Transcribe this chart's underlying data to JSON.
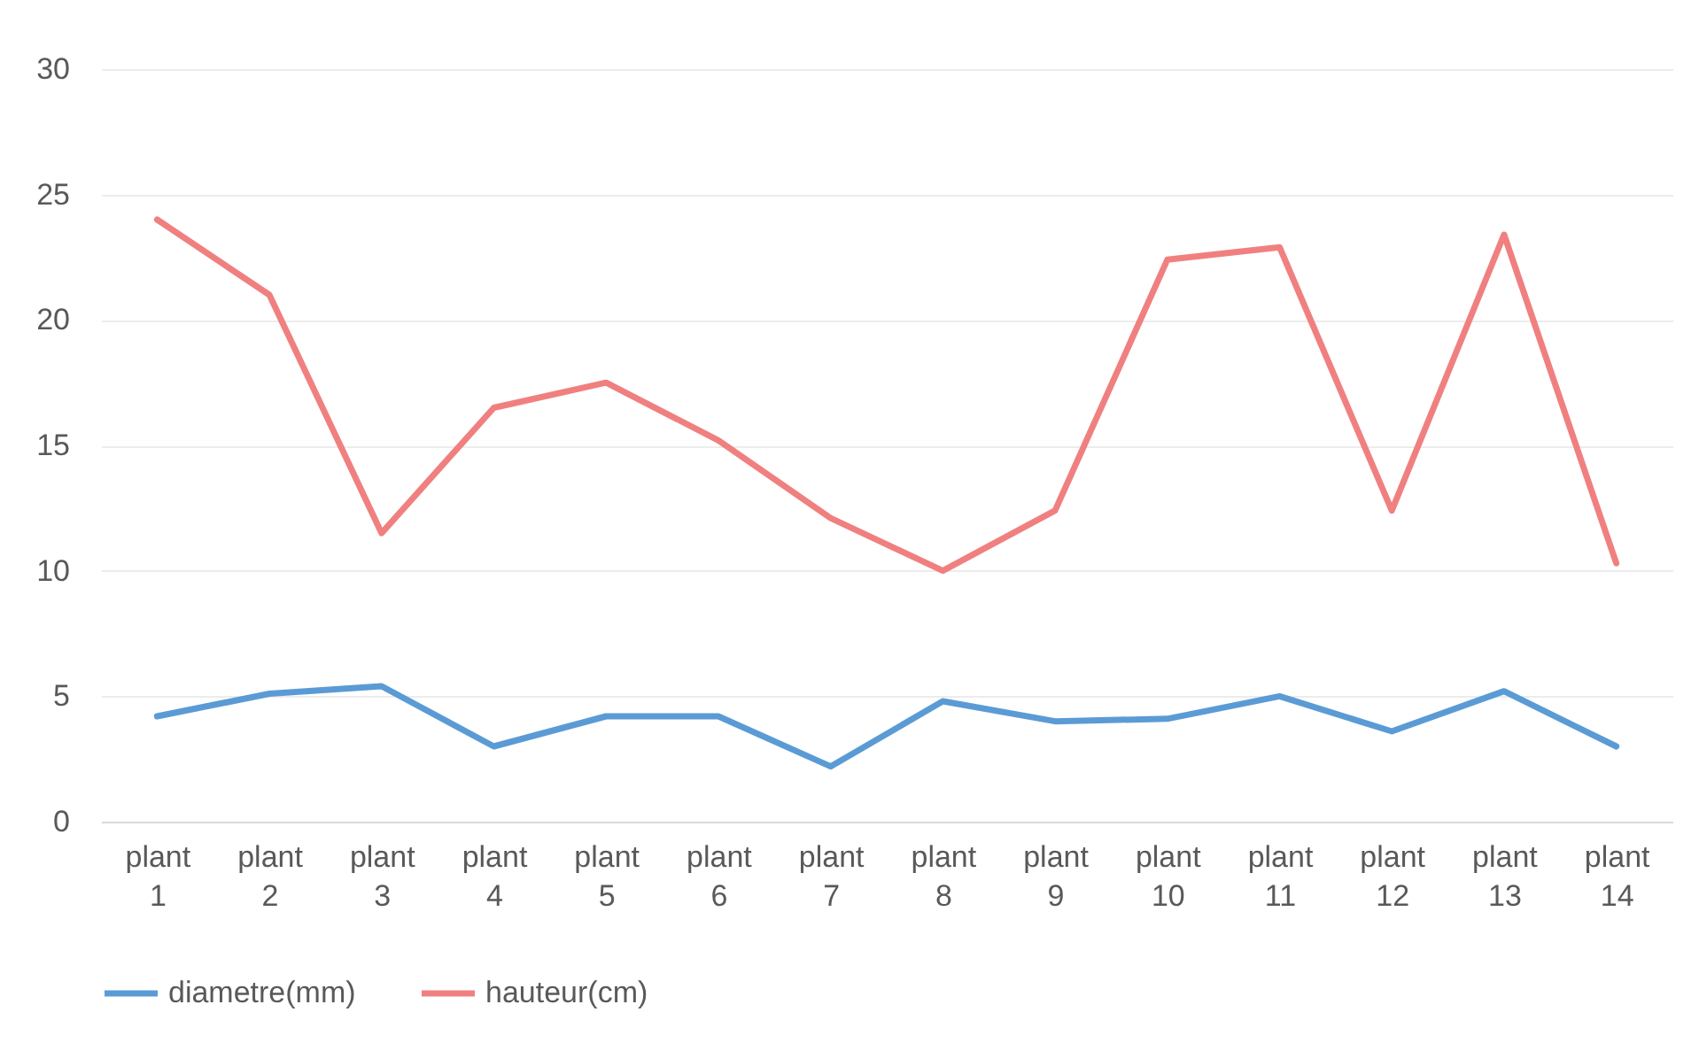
{
  "chart_data": {
    "type": "line",
    "categories": [
      "plant 1",
      "plant 2",
      "plant 3",
      "plant 4",
      "plant 5",
      "plant 6",
      "plant 7",
      "plant 8",
      "plant 9",
      "plant 10",
      "plant 11",
      "plant 12",
      "plant 13",
      "plant 14"
    ],
    "series": [
      {
        "name": "diametre(mm)",
        "color": "#5b9bd5",
        "values": [
          4.2,
          5.1,
          5.4,
          3.0,
          4.2,
          4.2,
          2.2,
          4.8,
          4.0,
          4.1,
          5.0,
          3.6,
          5.2,
          3.0
        ]
      },
      {
        "name": "hauteur(cm)",
        "color": "#f08080",
        "values": [
          24.0,
          21.0,
          11.5,
          16.5,
          17.5,
          15.2,
          12.1,
          10.0,
          12.4,
          22.4,
          22.9,
          12.4,
          23.4,
          10.3
        ]
      }
    ],
    "ylim": [
      0,
      30
    ],
    "yticks": [
      0,
      5,
      10,
      15,
      20,
      25,
      30
    ],
    "grid": "y",
    "legend": "bottom",
    "marker": "none",
    "line_style": "solid"
  }
}
